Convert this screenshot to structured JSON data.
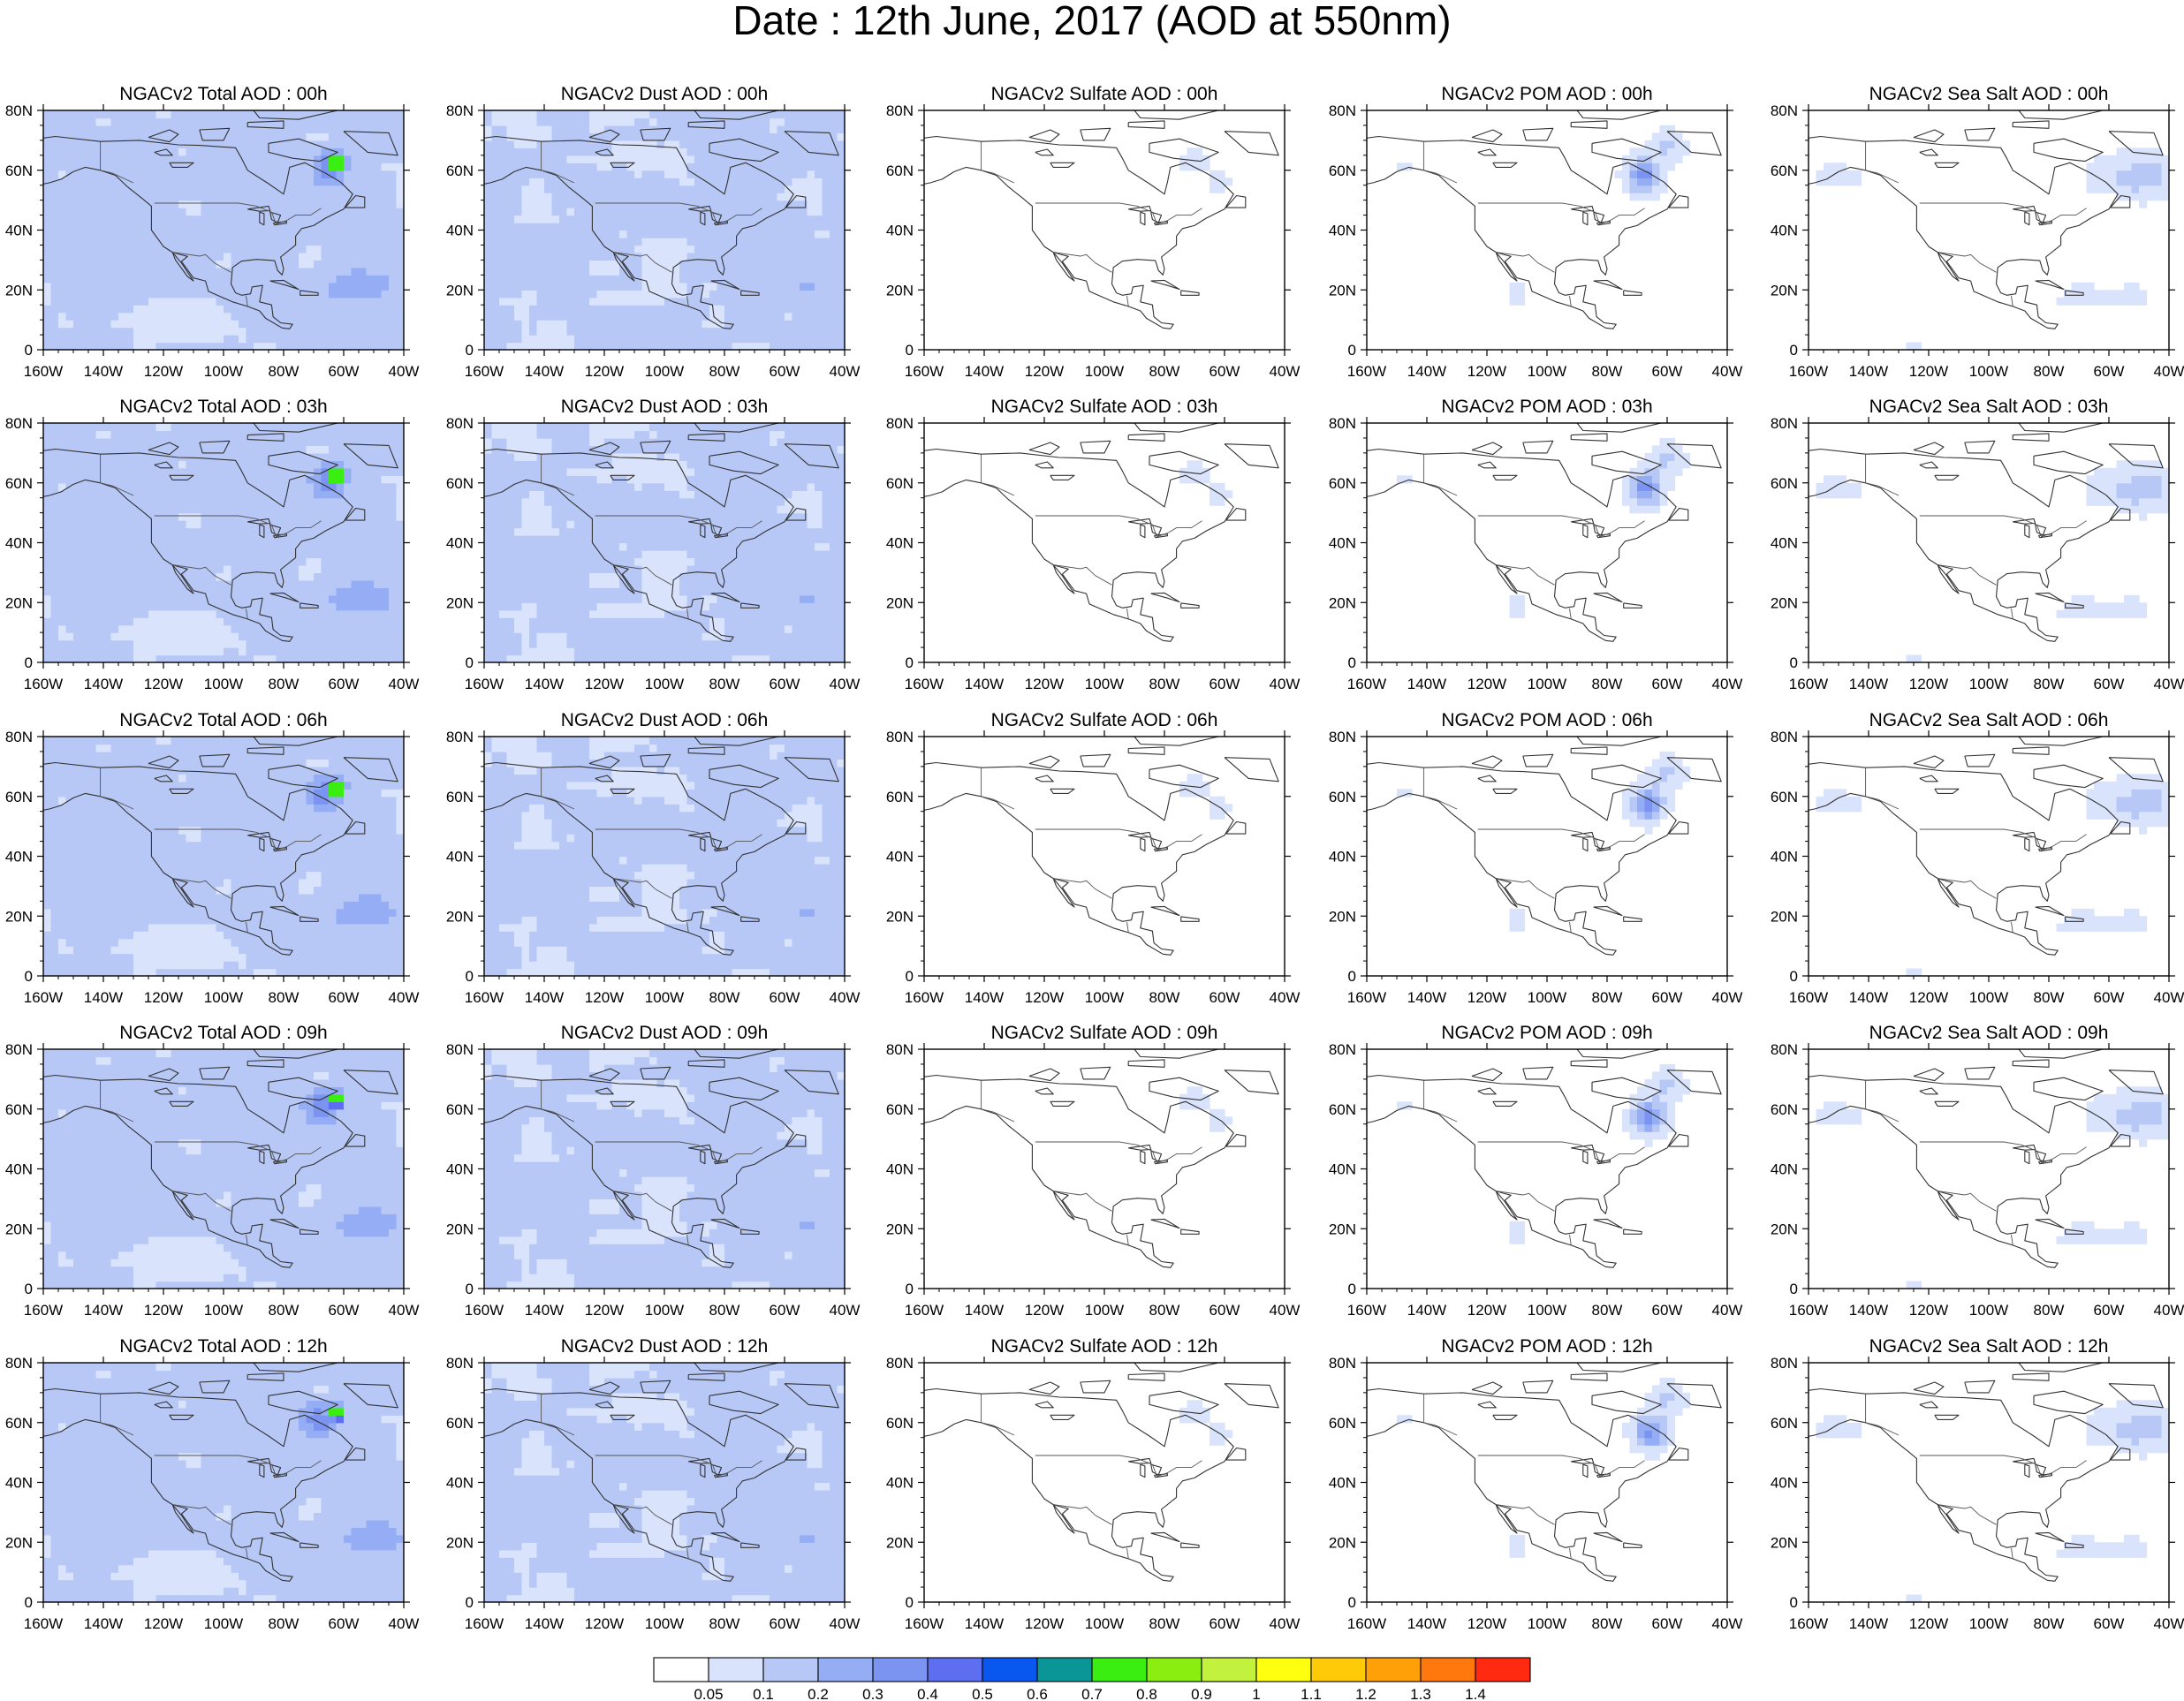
{
  "title": "Date : 12th June, 2017 (AOD at 550nm)",
  "chart_data": {
    "type": "heatmap",
    "title": "Date : 12th June, 2017 (AOD at 550nm)",
    "columns": [
      "Total",
      "Dust",
      "Sulfate",
      "POM",
      "SeaSalt"
    ],
    "rows": [
      "00h",
      "03h",
      "06h",
      "09h",
      "12h"
    ],
    "panel_titles": [
      [
        "NGACv2 Total AOD : 00h",
        "NGACv2 Dust AOD : 00h",
        "NGACv2 Sulfate AOD : 00h",
        "NGACv2 POM AOD : 00h",
        "NGACv2 Sea Salt AOD : 00h"
      ],
      [
        "NGACv2 Total AOD : 03h",
        "NGACv2 Dust AOD : 03h",
        "NGACv2 Sulfate AOD : 03h",
        "NGACv2 POM AOD : 03h",
        "NGACv2 Sea Salt AOD : 03h"
      ],
      [
        "NGACv2 Total AOD : 06h",
        "NGACv2 Dust AOD : 06h",
        "NGACv2 Sulfate AOD : 06h",
        "NGACv2 POM AOD : 06h",
        "NGACv2 Sea Salt AOD : 06h"
      ],
      [
        "NGACv2 Total AOD : 09h",
        "NGACv2 Dust AOD : 09h",
        "NGACv2 Sulfate AOD : 09h",
        "NGACv2 POM AOD : 09h",
        "NGACv2 Sea Salt  AOD : 09h"
      ],
      [
        "NGACv2 Total AOD  : 12h",
        "NGACv2 Dust AOD : 12h",
        "NGACv2 Sulfate AOD : 12h",
        "NGACv2 POM  AOD : 12h",
        "NGACv2 Sea Salt  AOD : 12h"
      ]
    ],
    "x_range": [
      -160,
      -40
    ],
    "y_range": [
      0,
      80
    ],
    "x_ticks": [
      "160W",
      "140W",
      "120W",
      "100W",
      "80W",
      "60W",
      "40W"
    ],
    "y_ticks": [
      "0",
      "20N",
      "40N",
      "60N",
      "80N"
    ],
    "colorbar": {
      "labels": [
        "0.05",
        "0.1",
        "0.2",
        "0.3",
        "0.4",
        "0.5",
        "0.6",
        "0.7",
        "0.8",
        "0.9",
        "1",
        "1.1",
        "1.2",
        "1.3",
        "1.4"
      ],
      "colors": [
        "#ffffff",
        "#d9e3fb",
        "#b7c8f7",
        "#94adf5",
        "#7b93f1",
        "#5d6ef0",
        "#0a57f0",
        "#0a9696",
        "#39ee10",
        "#8aee10",
        "#c2f23e",
        "#ffff10",
        "#ffcb08",
        "#ffa009",
        "#ff780e",
        "#ff2a10"
      ]
    }
  }
}
